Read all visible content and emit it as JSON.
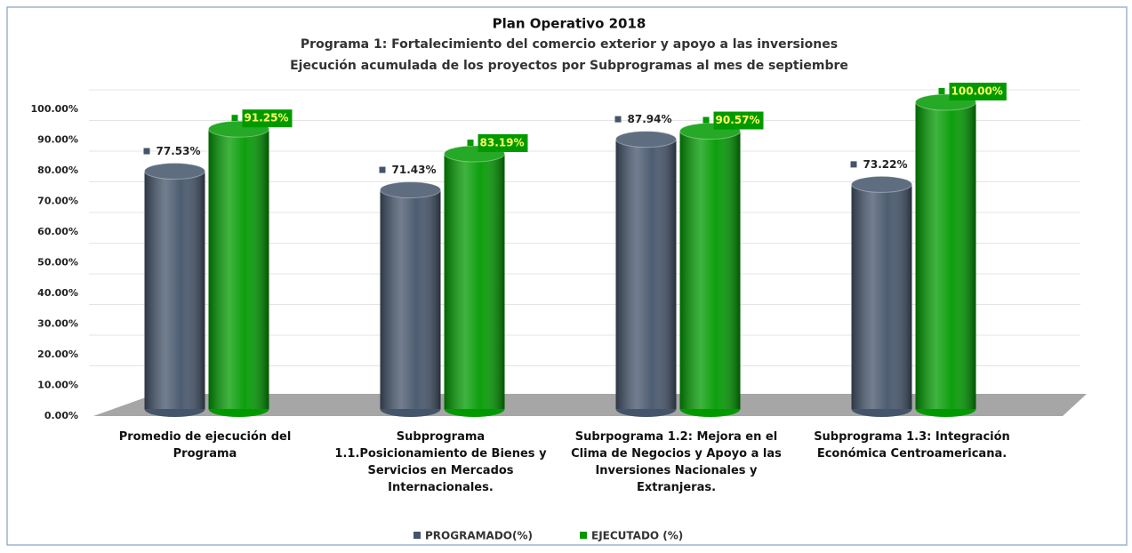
{
  "chart_data": {
    "type": "bar3d",
    "title": "Plan Operativo 2018",
    "subtitle": [
      "Programa 1: Fortalecimiento del comercio exterior y apoyo a las inversiones",
      "Ejecución acumulada de los proyectos por Subprogramas al mes de septiembre"
    ],
    "categories": [
      "Promedio de ejecución del Programa",
      "Subprograma 1.1.Posicionamiento de Bienes y Servicios en Mercados Internacionales.",
      "Subrpograma 1.2: Mejora en el Clima de Negocios y Apoyo a las Inversiones Nacionales y Extranjeras.",
      "Subprograma 1.3: Integración Económica Centroamericana."
    ],
    "series": [
      {
        "name": "PROGRAMADO(%)",
        "color": "#44546a",
        "values": [
          77.53,
          71.43,
          87.94,
          73.22
        ],
        "value_labels": [
          "77.53%",
          "71.43%",
          "87.94%",
          "73.22%"
        ]
      },
      {
        "name": "EJECUTADO (%)",
        "color": "#009a00",
        "values": [
          91.25,
          83.19,
          90.57,
          100
        ],
        "value_labels": [
          "91.25%",
          "83.19%",
          "90.57%",
          "100.00%"
        ]
      }
    ],
    "ylim": [
      0,
      100
    ],
    "yticks": [
      {
        "value": 0,
        "label": "0.00%"
      },
      {
        "value": 10,
        "label": "10.00%"
      },
      {
        "value": 20,
        "label": "20.00%"
      },
      {
        "value": 30,
        "label": "30.00%"
      },
      {
        "value": 40,
        "label": "40.00%"
      },
      {
        "value": 50,
        "label": "50.00%"
      },
      {
        "value": 60,
        "label": "60.00%"
      },
      {
        "value": 70,
        "label": "70.00%"
      },
      {
        "value": 80,
        "label": "80.00%"
      },
      {
        "value": 90,
        "label": "90.00%"
      },
      {
        "value": 100,
        "label": "100.00%"
      }
    ],
    "grid": true,
    "legend": "bottom"
  }
}
